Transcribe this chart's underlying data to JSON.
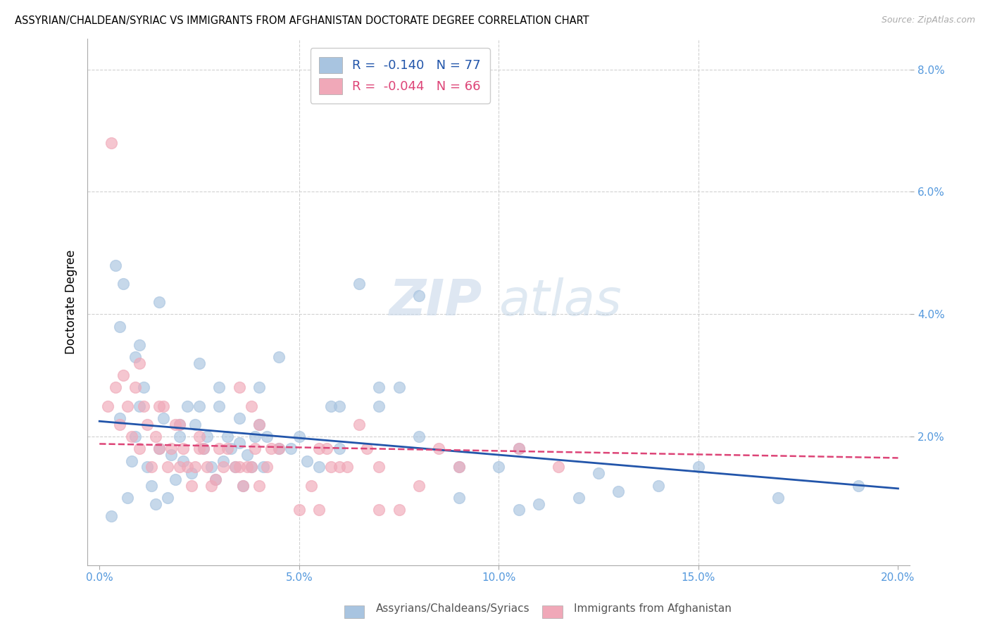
{
  "title": "ASSYRIAN/CHALDEAN/SYRIAC VS IMMIGRANTS FROM AFGHANISTAN DOCTORATE DEGREE CORRELATION CHART",
  "source": "Source: ZipAtlas.com",
  "ylabel": "Doctorate Degree",
  "xlabel_ticks": [
    "0.0%",
    "5.0%",
    "10.0%",
    "15.0%",
    "20.0%"
  ],
  "xlabel_vals": [
    0.0,
    5.0,
    10.0,
    15.0,
    20.0
  ],
  "ylabel_ticks": [
    "2.0%",
    "4.0%",
    "6.0%",
    "8.0%"
  ],
  "ylabel_vals": [
    2.0,
    4.0,
    6.0,
    8.0
  ],
  "xlim": [
    -0.3,
    20.3
  ],
  "ylim": [
    -0.1,
    8.5
  ],
  "blue_R": "-0.140",
  "blue_N": "77",
  "pink_R": "-0.044",
  "pink_N": "66",
  "blue_color": "#a8c4e0",
  "pink_color": "#f0a8b8",
  "blue_line_color": "#2255aa",
  "pink_line_color": "#dd4477",
  "legend_label_blue": "Assyrians/Chaldeans/Syriacs",
  "legend_label_pink": "Immigrants from Afghanistan",
  "watermark_zip": "ZIP",
  "watermark_atlas": "atlas",
  "background_color": "#ffffff",
  "blue_scatter_x": [
    0.4,
    0.6,
    0.5,
    0.8,
    0.9,
    1.0,
    1.1,
    1.2,
    1.3,
    1.4,
    1.5,
    1.6,
    1.7,
    1.8,
    1.9,
    2.0,
    2.1,
    2.2,
    2.3,
    2.4,
    2.5,
    2.6,
    2.7,
    2.8,
    2.9,
    3.0,
    3.1,
    3.2,
    3.3,
    3.4,
    3.5,
    3.6,
    3.7,
    3.8,
    3.9,
    4.0,
    4.1,
    4.2,
    4.5,
    4.8,
    5.2,
    5.5,
    5.8,
    6.0,
    6.5,
    7.0,
    7.5,
    8.0,
    9.0,
    10.0,
    10.5,
    11.0,
    12.0,
    13.0,
    15.0,
    19.0,
    0.3,
    0.7,
    1.0,
    1.5,
    2.0,
    2.5,
    3.0,
    3.5,
    4.0,
    4.5,
    5.0,
    6.0,
    7.0,
    8.0,
    9.0,
    10.5,
    12.5,
    14.0,
    17.0,
    0.5,
    0.9
  ],
  "blue_scatter_y": [
    4.8,
    4.5,
    3.8,
    1.6,
    2.0,
    2.5,
    2.8,
    1.5,
    1.2,
    0.9,
    1.8,
    2.3,
    1.0,
    1.7,
    1.3,
    2.0,
    1.6,
    2.5,
    1.4,
    2.2,
    3.2,
    1.8,
    2.0,
    1.5,
    1.3,
    2.5,
    1.6,
    2.0,
    1.8,
    1.5,
    1.9,
    1.2,
    1.7,
    1.5,
    2.0,
    2.8,
    1.5,
    2.0,
    3.3,
    1.8,
    1.6,
    1.5,
    2.5,
    1.8,
    4.5,
    2.5,
    2.8,
    4.3,
    1.0,
    1.5,
    0.8,
    0.9,
    1.0,
    1.1,
    1.5,
    1.2,
    0.7,
    1.0,
    3.5,
    4.2,
    2.2,
    2.5,
    2.8,
    2.3,
    2.2,
    1.8,
    2.0,
    2.5,
    2.8,
    2.0,
    1.5,
    1.8,
    1.4,
    1.2,
    1.0,
    2.3,
    3.3
  ],
  "pink_scatter_x": [
    0.2,
    0.4,
    0.5,
    0.6,
    0.7,
    0.8,
    0.9,
    1.0,
    1.1,
    1.2,
    1.3,
    1.4,
    1.5,
    1.6,
    1.7,
    1.8,
    1.9,
    2.0,
    2.1,
    2.2,
    2.3,
    2.4,
    2.5,
    2.6,
    2.7,
    2.8,
    2.9,
    3.0,
    3.1,
    3.2,
    3.4,
    3.6,
    3.7,
    3.9,
    4.2,
    4.5,
    5.0,
    5.3,
    5.5,
    6.5,
    7.0,
    7.5,
    8.0,
    9.0,
    10.5,
    11.5,
    0.3,
    1.0,
    1.5,
    2.0,
    2.5,
    3.5,
    4.0,
    5.5,
    6.0,
    7.0,
    8.5,
    4.3,
    5.8,
    6.7,
    3.5,
    4.0,
    3.8,
    5.7,
    6.2,
    3.8
  ],
  "pink_scatter_y": [
    2.5,
    2.8,
    2.2,
    3.0,
    2.5,
    2.0,
    2.8,
    1.8,
    2.5,
    2.2,
    1.5,
    2.0,
    1.8,
    2.5,
    1.5,
    1.8,
    2.2,
    1.5,
    1.8,
    1.5,
    1.2,
    1.5,
    2.0,
    1.8,
    1.5,
    1.2,
    1.3,
    1.8,
    1.5,
    1.8,
    1.5,
    1.2,
    1.5,
    1.8,
    1.5,
    1.8,
    0.8,
    1.2,
    1.8,
    2.2,
    1.5,
    0.8,
    1.2,
    1.5,
    1.8,
    1.5,
    6.8,
    3.2,
    2.5,
    2.2,
    1.8,
    1.5,
    1.2,
    0.8,
    1.5,
    0.8,
    1.8,
    1.8,
    1.5,
    1.8,
    2.8,
    2.2,
    2.5,
    1.8,
    1.5,
    1.5
  ],
  "blue_trend_x": [
    0.0,
    20.0
  ],
  "blue_trend_y": [
    2.25,
    1.15
  ],
  "pink_trend_x": [
    0.0,
    20.0
  ],
  "pink_trend_y": [
    1.88,
    1.65
  ]
}
